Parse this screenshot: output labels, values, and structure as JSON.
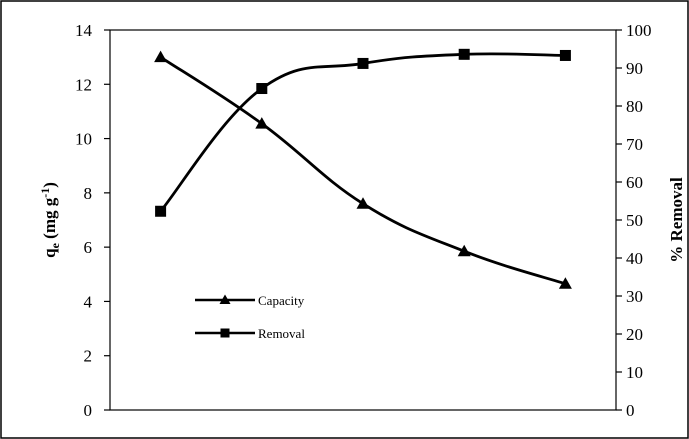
{
  "chart_data": {
    "type": "line",
    "x": [
      1,
      2,
      3,
      4,
      5
    ],
    "series": [
      {
        "name": "Capacity",
        "axis": "left",
        "marker": "triangle",
        "values": [
          13.0,
          10.55,
          7.6,
          5.85,
          4.65
        ]
      },
      {
        "name": "Removal",
        "axis": "right",
        "marker": "square",
        "values": [
          52.3,
          84.6,
          91.2,
          93.6,
          93.3
        ]
      }
    ],
    "ylabel_left": {
      "main": "q",
      "sub": "e",
      "units": " (mg g",
      "sup": "-1",
      "close": ")"
    },
    "ylabel_right": "% Removal",
    "xlabel": "",
    "ylim_left": [
      0,
      14
    ],
    "ylim_right": [
      0,
      100
    ],
    "yticks_left": [
      "0",
      "2",
      "4",
      "6",
      "8",
      "10",
      "12",
      "14"
    ],
    "yticks_right": [
      "0",
      "10",
      "20",
      "30",
      "40",
      "50",
      "60",
      "70",
      "80",
      "90",
      "100"
    ],
    "xticks": [],
    "grid": false,
    "legend": {
      "placement": "lower-left",
      "entries": [
        "Capacity",
        "Removal"
      ]
    },
    "line_color": "#000000"
  }
}
